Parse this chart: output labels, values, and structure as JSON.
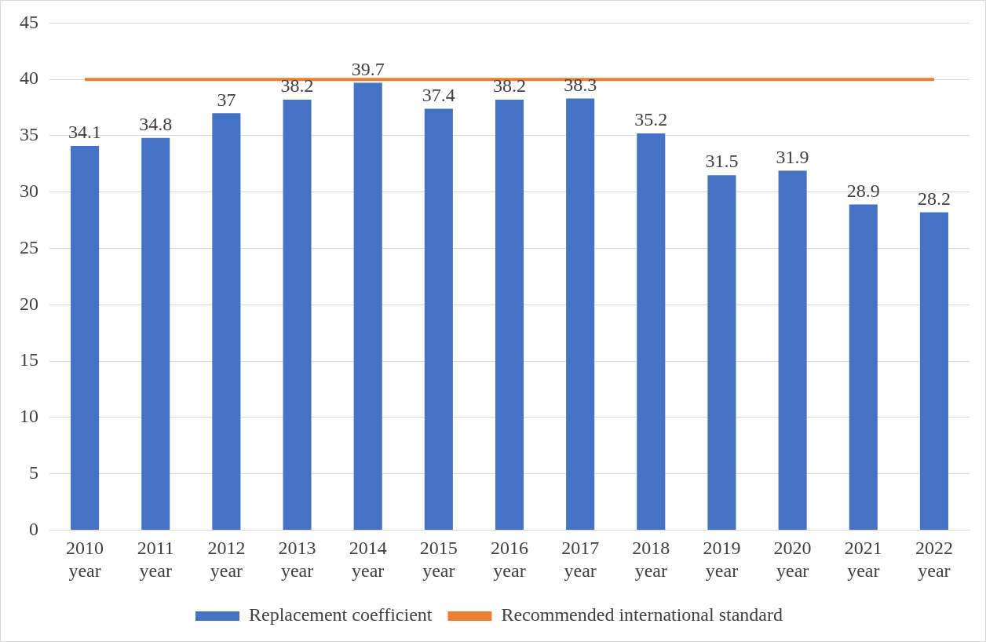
{
  "chart_data": {
    "type": "bar",
    "categories": [
      "2010 year",
      "2011 year",
      "2012 year",
      "2013 year",
      "2014 year",
      "2015 year",
      "2016 year",
      "2017 year",
      "2018 year",
      "2019 year",
      "2020 year",
      "2021 year",
      "2022 year"
    ],
    "series": [
      {
        "name": "Replacement coefficient",
        "color": "#4472c4",
        "values": [
          34.1,
          34.8,
          37,
          38.2,
          39.7,
          37.4,
          38.2,
          38.3,
          35.2,
          31.5,
          31.9,
          28.9,
          28.2
        ],
        "value_labels": [
          "34.1",
          "34.8",
          "37",
          "38.2",
          "39.7",
          "37.4",
          "38.2",
          "38.3",
          "35.2",
          "31.5",
          "31.9",
          "28.9",
          "28.2"
        ]
      },
      {
        "name": "Recommended international standard",
        "type": "line",
        "color": "#ed7d31",
        "values": [
          40,
          40,
          40,
          40,
          40,
          40,
          40,
          40,
          40,
          40,
          40,
          40,
          40
        ]
      }
    ],
    "ylim": [
      0,
      45
    ],
    "yticks": [
      0,
      5,
      10,
      15,
      20,
      25,
      30,
      35,
      40,
      45
    ],
    "grid": "y",
    "legend": "bottom",
    "marker": "none"
  }
}
